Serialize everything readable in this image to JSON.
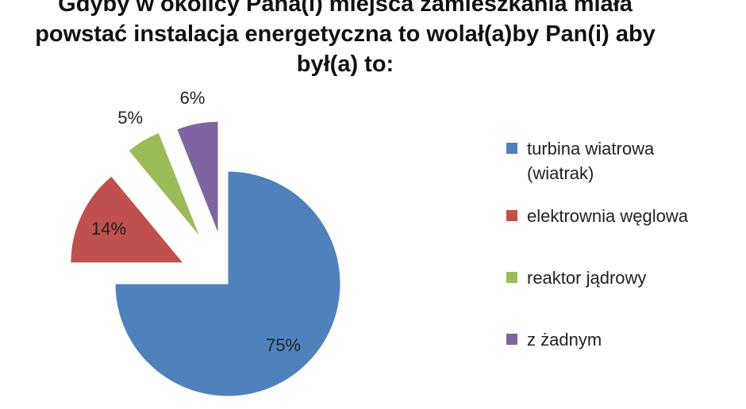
{
  "chart_data": {
    "type": "pie",
    "title_lines": [
      "Gdyby w okolicy Pana(i) miejsca zamieszkania miała",
      "powstać instalacja energetyczna to wolał(a)by Pan(i) aby",
      "był(a)  to:"
    ],
    "categories": [
      "turbina wiatrowa (wiatrak)",
      "elektrownia węglowa",
      "reaktor jądrowy",
      "z żadnym"
    ],
    "values": [
      75,
      14,
      5,
      6
    ],
    "labels": [
      "75%",
      "14%",
      "5%",
      "6%"
    ],
    "colors": [
      "#4f81bd",
      "#c0504d",
      "#9bbb59",
      "#8064a2"
    ],
    "legend_position": "right",
    "exploded": true
  },
  "legend": {
    "items": [
      {
        "line1": "turbina wiatrowa",
        "line2": "(wiatrak)",
        "color": "#4f81bd"
      },
      {
        "line1": "elektrownia węglowa",
        "line2": "",
        "color": "#c0504d"
      },
      {
        "line1": "reaktor jądrowy",
        "line2": "",
        "color": "#9bbb59"
      },
      {
        "line1": "z żadnym",
        "line2": "",
        "color": "#8064a2"
      }
    ]
  }
}
